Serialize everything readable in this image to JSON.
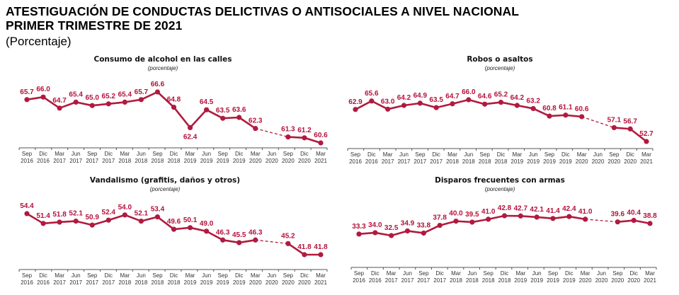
{
  "header": {
    "title_line1": "ATESTIGUACIÓN DE CONDUCTAS DELICTIVAS O ANTISOCIALES A NIVEL NACIONAL",
    "title_line2": "PRIMER TRIMESTRE DE 2021",
    "subtitle": "(Porcentaje)"
  },
  "colors": {
    "series": "#b11a3e",
    "label": "#b5123c",
    "axis": "#555555"
  },
  "categories": [
    [
      "Sep",
      "2016"
    ],
    [
      "Dic",
      "2016"
    ],
    [
      "Mar",
      "2017"
    ],
    [
      "Jun",
      "2017"
    ],
    [
      "Sep",
      "2017"
    ],
    [
      "Dic",
      "2017"
    ],
    [
      "Mar",
      "2018"
    ],
    [
      "Jun",
      "2018"
    ],
    [
      "Sep",
      "2018"
    ],
    [
      "Dic",
      "2018"
    ],
    [
      "Mar",
      "2019"
    ],
    [
      "Jun",
      "2019"
    ],
    [
      "Sep",
      "2019"
    ],
    [
      "Dic",
      "2019"
    ],
    [
      "Mar",
      "2020"
    ],
    [
      "Jun",
      "2020"
    ],
    [
      "Sep",
      "2020"
    ],
    [
      "Dic",
      "2020"
    ],
    [
      "Mar",
      "2021"
    ]
  ],
  "chart_data": [
    {
      "type": "line",
      "title": "Consumo de alcohol en las calles",
      "subtitle": "(porcentaje)",
      "xlabel": "",
      "ylabel": "",
      "grid": false,
      "gap_note": "Jun 2020 sin dato; línea punteada entre Mar 2020 y Sep 2020",
      "categories": [
        "Sep 2016",
        "Dic 2016",
        "Mar 2017",
        "Jun 2017",
        "Sep 2017",
        "Dic 2017",
        "Mar 2018",
        "Jun 2018",
        "Sep 2018",
        "Dic 2018",
        "Mar 2019",
        "Jun 2019",
        "Sep 2019",
        "Dic 2019",
        "Mar 2020",
        "Jun 2020",
        "Sep 2020",
        "Dic 2020",
        "Mar 2021"
      ],
      "values": [
        65.7,
        66.0,
        64.7,
        65.4,
        65.0,
        65.2,
        65.4,
        65.7,
        66.6,
        64.8,
        62.4,
        64.5,
        63.5,
        63.6,
        62.3,
        null,
        61.3,
        61.2,
        60.6
      ],
      "label_pos": [
        "a",
        "a",
        "a",
        "a",
        "a",
        "a",
        "a",
        "a",
        "a",
        "a",
        "b",
        "a",
        "a",
        "a",
        "a",
        "a",
        "a",
        "a",
        "a"
      ]
    },
    {
      "type": "line",
      "title": "Robos o asaltos",
      "subtitle": "(porcentaje)",
      "xlabel": "",
      "ylabel": "",
      "grid": false,
      "categories": [
        "Sep 2016",
        "Dic 2016",
        "Mar 2017",
        "Jun 2017",
        "Sep 2017",
        "Dic 2017",
        "Mar 2018",
        "Jun 2018",
        "Sep 2018",
        "Dic 2018",
        "Mar 2019",
        "Jun 2019",
        "Sep 2019",
        "Dic 2019",
        "Mar 2020",
        "Jun 2020",
        "Sep 2020",
        "Dic 2020",
        "Mar 2021"
      ],
      "values": [
        62.9,
        65.6,
        63.0,
        64.2,
        64.9,
        63.5,
        64.7,
        66.0,
        64.6,
        65.2,
        64.2,
        63.2,
        60.8,
        61.1,
        60.6,
        null,
        57.1,
        56.7,
        52.7
      ],
      "label_pos": [
        "a",
        "a",
        "a",
        "a",
        "a",
        "a",
        "a",
        "a",
        "a",
        "a",
        "a",
        "a",
        "a",
        "a",
        "a",
        "a",
        "a",
        "a",
        "a"
      ]
    },
    {
      "type": "line",
      "title": "Vandalismo (grafitis, daños y otros)",
      "subtitle": "(porcentaje)",
      "xlabel": "",
      "ylabel": "",
      "grid": false,
      "categories": [
        "Sep 2016",
        "Dic 2016",
        "Mar 2017",
        "Jun 2017",
        "Sep 2017",
        "Dic 2017",
        "Mar 2018",
        "Jun 2018",
        "Sep 2018",
        "Dic 2018",
        "Mar 2019",
        "Jun 2019",
        "Sep 2019",
        "Dic 2019",
        "Mar 2020",
        "Jun 2020",
        "Sep 2020",
        "Dic 2020",
        "Mar 2021"
      ],
      "values": [
        54.4,
        51.4,
        51.8,
        52.1,
        50.9,
        52.4,
        54.0,
        52.1,
        53.4,
        49.6,
        50.1,
        49.0,
        46.3,
        45.5,
        46.3,
        null,
        45.2,
        41.8,
        41.8
      ],
      "label_pos": [
        "a",
        "a",
        "a",
        "a",
        "a",
        "a",
        "a",
        "a",
        "a",
        "a",
        "a",
        "a",
        "a",
        "a",
        "a",
        "a",
        "a",
        "a",
        "a"
      ]
    },
    {
      "type": "line",
      "title": "Disparos frecuentes con armas",
      "subtitle": "(porcentaje)",
      "xlabel": "",
      "ylabel": "",
      "grid": false,
      "categories": [
        "Sep 2016",
        "Dic 2016",
        "Mar 2017",
        "Jun 2017",
        "Sep 2017",
        "Dic 2017",
        "Mar 2018",
        "Jun 2018",
        "Sep 2018",
        "Dic 2018",
        "Mar 2019",
        "Jun 2019",
        "Sep 2019",
        "Dic 2019",
        "Mar 2020",
        "Jun 2020",
        "Sep 2020",
        "Dic 2020",
        "Mar 2021"
      ],
      "values": [
        33.3,
        34.0,
        32.5,
        34.9,
        33.8,
        37.8,
        40.0,
        39.5,
        41.0,
        42.8,
        42.7,
        42.1,
        41.4,
        42.4,
        41.0,
        null,
        39.6,
        40.4,
        38.8
      ],
      "label_pos": [
        "a",
        "a",
        "a",
        "a",
        "a",
        "a",
        "a",
        "a",
        "a",
        "a",
        "a",
        "a",
        "a",
        "a",
        "a",
        "a",
        "a",
        "a",
        "a"
      ]
    }
  ]
}
